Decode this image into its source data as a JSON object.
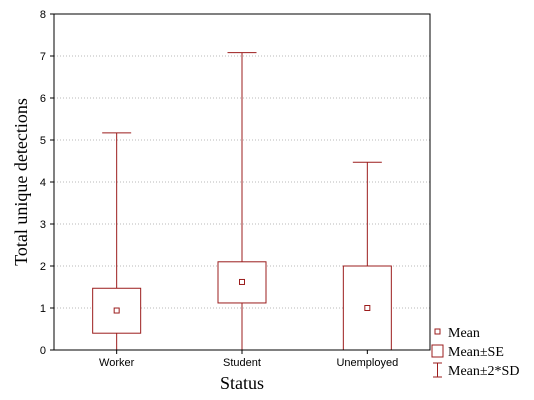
{
  "chart_data": {
    "type": "box",
    "xlabel": "Status",
    "ylabel": "Total unique detections",
    "ylim": [
      0,
      8
    ],
    "yticks": [
      "0",
      "1",
      "2",
      "3",
      "4",
      "5",
      "6",
      "7",
      "8"
    ],
    "categories": [
      "Worker",
      "Student",
      "Unemployed"
    ],
    "boxes": [
      {
        "category": "Worker",
        "mean": 0.94,
        "se_low": 0.4,
        "se_high": 1.47,
        "sd2_low": 0,
        "sd2_high": 5.17
      },
      {
        "category": "Student",
        "mean": 1.62,
        "se_low": 1.12,
        "se_high": 2.1,
        "sd2_low": 0,
        "sd2_high": 7.08
      },
      {
        "category": "Unemployed",
        "mean": 1.0,
        "se_low": 0,
        "se_high": 2.0,
        "sd2_low": 0,
        "sd2_high": 4.47
      }
    ],
    "grid": true,
    "legend_position": "bottom-right",
    "legend": [
      "Mean",
      "Mean±SE",
      "Mean±2*SD"
    ],
    "series_color": "#9b1c1c"
  }
}
